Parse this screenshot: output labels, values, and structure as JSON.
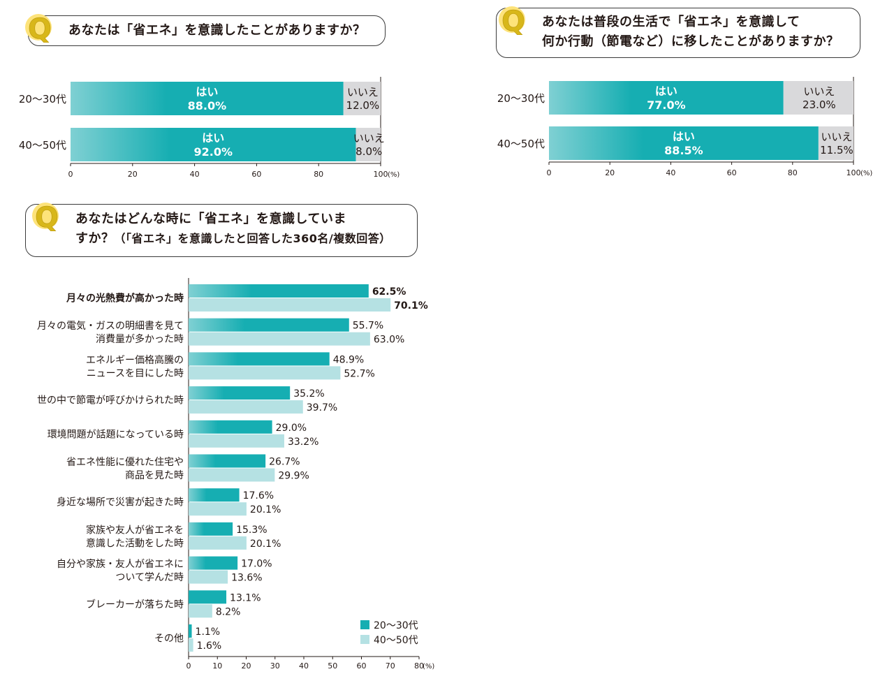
{
  "colors": {
    "teal": "#16aeb2",
    "teal_light_start": "#7fd0d3",
    "light_teal": "#b5e1e3",
    "gray": "#d9d9db",
    "badge_fill": "#fde37a",
    "badge_text": "#d8b71a"
  },
  "questions": [
    {
      "badge": "Q",
      "lines": [
        "あなたは「省エネ」を意識したことがありますか？"
      ]
    },
    {
      "badge": "Q",
      "lines": [
        "あなたは普段の生活で「省エネ」を意識して",
        "何か行動（節電など）に移したことがありますか？"
      ]
    },
    {
      "badge": "Q",
      "lines": [
        "あなたはどんな時に「省エネ」を意識していま",
        "すか？"
      ],
      "note": "（「省エネ」を意識したと回答した360名/複数回答）"
    }
  ],
  "chart_data": [
    {
      "type": "bar",
      "orientation": "horizontal-stacked",
      "categories": [
        "20〜30代",
        "40〜50代"
      ],
      "series": [
        {
          "name": "はい",
          "values": [
            88.0,
            92.0
          ],
          "labels": [
            "88.0%",
            "92.0%"
          ]
        },
        {
          "name": "いいえ",
          "values": [
            12.0,
            8.0
          ],
          "labels": [
            "12.0%",
            "8.0%"
          ]
        }
      ],
      "xlim": [
        0,
        100
      ],
      "xticks": [
        "0",
        "20",
        "40",
        "60",
        "80",
        "100"
      ],
      "xunit": "(%)"
    },
    {
      "type": "bar",
      "orientation": "horizontal-stacked",
      "categories": [
        "20〜30代",
        "40〜50代"
      ],
      "series": [
        {
          "name": "はい",
          "values": [
            77.0,
            88.5
          ],
          "labels": [
            "77.0%",
            "88.5%"
          ]
        },
        {
          "name": "いいえ",
          "values": [
            23.0,
            11.5
          ],
          "labels": [
            "23.0%",
            "11.5%"
          ]
        }
      ],
      "xlim": [
        0,
        100
      ],
      "xticks": [
        "0",
        "20",
        "40",
        "60",
        "80",
        "100"
      ],
      "xunit": "(%)"
    },
    {
      "type": "bar",
      "orientation": "horizontal-grouped",
      "categories": [
        [
          "月々の光熱費が高かった時"
        ],
        [
          "月々の電気・ガスの明細書を見て",
          "消費量が多かった時"
        ],
        [
          "エネルギー価格高騰の",
          "ニュースを目にした時"
        ],
        [
          "世の中で節電が呼びかけられた時"
        ],
        [
          "環境問題が話題になっている時"
        ],
        [
          "省エネ性能に優れた住宅や",
          "商品を見た時"
        ],
        [
          "身近な場所で災害が起きた時"
        ],
        [
          "家族や友人が省エネを",
          "意識した活動をした時"
        ],
        [
          "自分や家族・友人が省エネに",
          "ついて学んだ時"
        ],
        [
          "ブレーカーが落ちた時"
        ],
        [
          "その他"
        ]
      ],
      "series": [
        {
          "name": "20〜30代",
          "values": [
            62.5,
            55.7,
            48.9,
            35.2,
            29.0,
            26.7,
            17.6,
            15.3,
            17.0,
            13.1,
            1.1
          ],
          "labels": [
            "62.5%",
            "55.7%",
            "48.9%",
            "35.2%",
            "29.0%",
            "26.7%",
            "17.6%",
            "15.3%",
            "17.0%",
            "13.1%",
            "1.1%"
          ]
        },
        {
          "name": "40〜50代",
          "values": [
            70.1,
            63.0,
            52.7,
            39.7,
            33.2,
            29.9,
            20.1,
            20.1,
            13.6,
            8.2,
            1.6
          ],
          "labels": [
            "70.1%",
            "63.0%",
            "52.7%",
            "39.7%",
            "33.2%",
            "29.9%",
            "20.1%",
            "20.1%",
            "13.6%",
            "8.2%",
            "1.6%"
          ]
        }
      ],
      "highlight_category_index": 0,
      "xlim": [
        0,
        80
      ],
      "xticks": [
        "0",
        "10",
        "20",
        "30",
        "40",
        "50",
        "60",
        "70",
        "80"
      ],
      "xunit": "(%)",
      "legend_position": "bottom-right"
    }
  ]
}
